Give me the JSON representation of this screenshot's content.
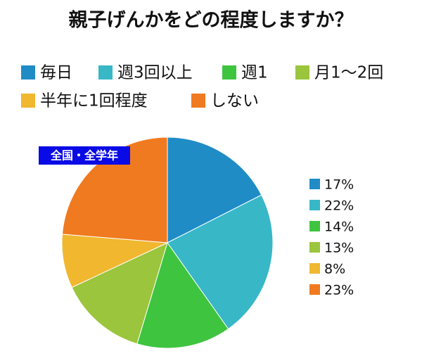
{
  "chart_data": {
    "type": "pie",
    "title": "親子げんかをどの程度しますか？",
    "subtitle": "全国・全学年",
    "categories": [
      "毎日",
      "週3回以上",
      "週1",
      "月1〜2回",
      "半年に1回程度",
      "しない"
    ],
    "values": [
      17,
      22,
      14,
      13,
      8,
      23
    ],
    "value_labels": [
      "17%",
      "22%",
      "14%",
      "13%",
      "8%",
      "23%"
    ],
    "colors": [
      "#1f8cc6",
      "#38b7c7",
      "#3ec43e",
      "#9bc53c",
      "#f0b72f",
      "#f07a20"
    ]
  }
}
